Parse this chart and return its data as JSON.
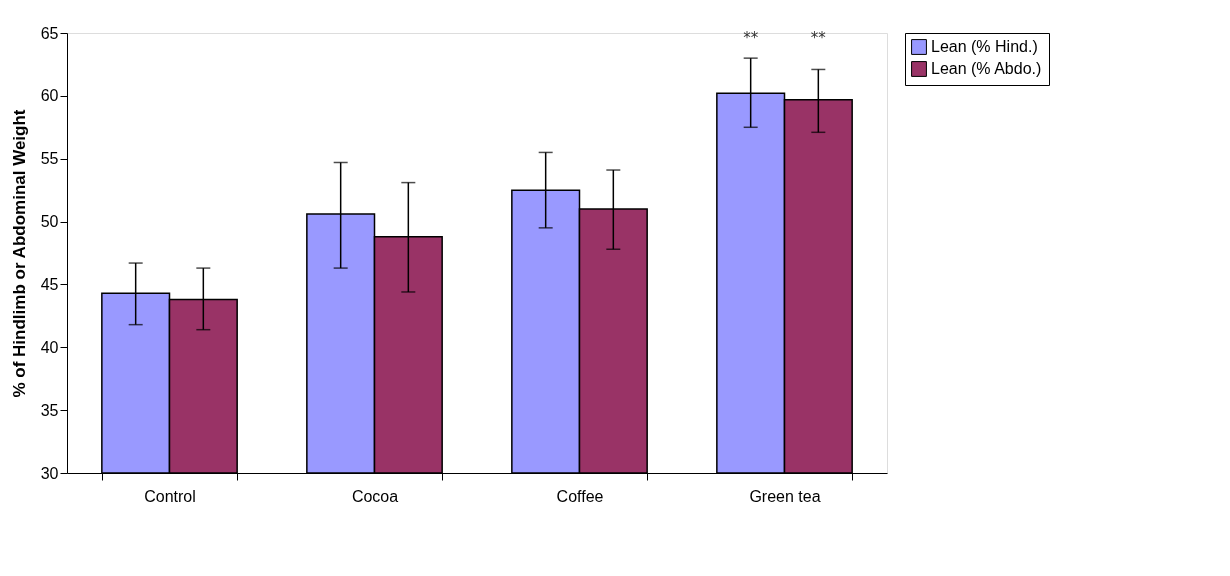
{
  "chart_data": {
    "type": "bar",
    "ylabel": "% of Hindlimb or Abdominal Weight",
    "categories": [
      "Control",
      "Cocoa",
      "Coffee",
      "Green tea"
    ],
    "series": [
      {
        "name": "Lean (% Hind.)",
        "color": "#9999ff",
        "values": [
          44.3,
          50.6,
          52.5,
          60.2
        ],
        "errors": [
          [
            41.8,
            46.7
          ],
          [
            46.3,
            54.7
          ],
          [
            49.5,
            55.5
          ],
          [
            57.5,
            63.0
          ]
        ]
      },
      {
        "name": "Lean (% Abdo.)",
        "color": "#993366",
        "values": [
          43.8,
          48.8,
          51.0,
          59.7
        ],
        "errors": [
          [
            41.4,
            46.3
          ],
          [
            44.4,
            53.1
          ],
          [
            47.8,
            54.1
          ],
          [
            57.1,
            62.1
          ]
        ]
      }
    ],
    "ylim": [
      30,
      65
    ],
    "yticks": [
      30,
      35,
      40,
      45,
      50,
      55,
      60,
      65
    ],
    "grid": false,
    "legend": "right",
    "annotations": [
      "**",
      "**"
    ]
  }
}
